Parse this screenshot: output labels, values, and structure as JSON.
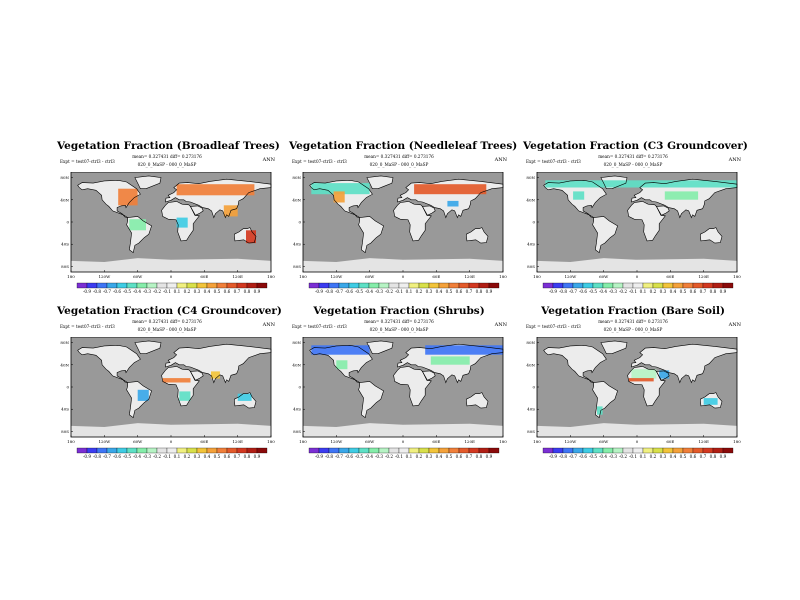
{
  "figure": {
    "season": "ANN",
    "expt_line": "Expt = test07-ctrl3 - ctrl3",
    "stats_line": "mean= 0.327431 diff= 0.273176",
    "run_line": "020_0_MaSP - 000_0_MaSP",
    "colors": {
      "ocean": "#999999",
      "land_neutral": "#ececec",
      "antarctic": "#e4e4e4",
      "frame": "#000000"
    }
  },
  "chart_data": [
    {
      "type": "heatmap",
      "title": "Vegetation Fraction (Broadleaf Trees)",
      "lat_ticks": [
        "80N",
        "40N",
        "0",
        "40S",
        "80S"
      ],
      "lon_ticks": [
        "180",
        "120W",
        "60W",
        "0",
        "60E",
        "120E",
        "180"
      ],
      "colorbar": {
        "labels": [
          "-0.9",
          "-0.8",
          "-0.7",
          "-0.6",
          "-0.5",
          "-0.4",
          "-0.3",
          "-0.2",
          "-0.1",
          "0.1",
          "0.2",
          "0.3",
          "0.4",
          "0.5",
          "0.6",
          "0.7",
          "0.8",
          "0.9"
        ],
        "colors": [
          "#7b2fd4",
          "#3c3cf0",
          "#3f75f5",
          "#3aa7e8",
          "#3fcce4",
          "#5ee0c5",
          "#85edaa",
          "#b6f3c4",
          "#e4e4e4",
          "#eeeeee",
          "#f0f080",
          "#d8e04a",
          "#f2c43a",
          "#f4a13a",
          "#f07f3a",
          "#e35a2a",
          "#d23820",
          "#b01e14",
          "#8a0a0a"
        ]
      },
      "regions": [
        {
          "name": "eastern-north-america",
          "lat": [
            30,
            60
          ],
          "lon": [
            -95,
            -60
          ],
          "value": 0.6
        },
        {
          "name": "boreal-eurasia",
          "lat": [
            48,
            68
          ],
          "lon": [
            10,
            150
          ],
          "value": 0.55
        },
        {
          "name": "amazon-basin",
          "lat": [
            -15,
            5
          ],
          "lon": [
            -75,
            -45
          ],
          "value": -0.3
        },
        {
          "name": "central-africa",
          "lat": [
            -10,
            8
          ],
          "lon": [
            10,
            30
          ],
          "value": -0.55
        },
        {
          "name": "australia-east",
          "lat": [
            -38,
            -15
          ],
          "lon": [
            135,
            153
          ],
          "value": 0.8
        },
        {
          "name": "southeast-asia",
          "lat": [
            10,
            30
          ],
          "lon": [
            95,
            120
          ],
          "value": 0.5
        }
      ]
    },
    {
      "type": "heatmap",
      "title": "Vegetation Fraction (Needleleaf Trees)",
      "lat_ticks": [
        "80N",
        "40N",
        "0",
        "40S",
        "80S"
      ],
      "lon_ticks": [
        "180",
        "120W",
        "60W",
        "0",
        "60E",
        "120E",
        "180"
      ],
      "colorbar": {
        "labels": [
          "-0.9",
          "-0.8",
          "-0.7",
          "-0.6",
          "-0.5",
          "-0.4",
          "-0.3",
          "-0.2",
          "-0.1",
          "0.1",
          "0.2",
          "0.3",
          "0.4",
          "0.5",
          "0.6",
          "0.7",
          "0.8",
          "0.9"
        ],
        "colors": [
          "#7b2fd4",
          "#3c3cf0",
          "#3f75f5",
          "#3aa7e8",
          "#3fcce4",
          "#5ee0c5",
          "#85edaa",
          "#b6f3c4",
          "#e4e4e4",
          "#eeeeee",
          "#f0f080",
          "#d8e04a",
          "#f2c43a",
          "#f4a13a",
          "#f07f3a",
          "#e35a2a",
          "#d23820",
          "#b01e14",
          "#8a0a0a"
        ]
      },
      "regions": [
        {
          "name": "boreal-north-america",
          "lat": [
            50,
            70
          ],
          "lon": [
            -165,
            -60
          ],
          "value": -0.4
        },
        {
          "name": "boreal-eurasia",
          "lat": [
            50,
            68
          ],
          "lon": [
            20,
            150
          ],
          "value": 0.65
        },
        {
          "name": "western-north-america",
          "lat": [
            35,
            55
          ],
          "lon": [
            -125,
            -105
          ],
          "value": 0.5
        },
        {
          "name": "tibet",
          "lat": [
            28,
            38
          ],
          "lon": [
            80,
            100
          ],
          "value": -0.6
        }
      ]
    },
    {
      "type": "heatmap",
      "title": "Vegetation Fraction (C3 Groundcover)",
      "lat_ticks": [
        "80N",
        "40N",
        "0",
        "40S",
        "80S"
      ],
      "lon_ticks": [
        "180",
        "120W",
        "60W",
        "0",
        "60E",
        "120E",
        "180"
      ],
      "colorbar": {
        "labels": [
          "-0.9",
          "-0.8",
          "-0.7",
          "-0.6",
          "-0.5",
          "-0.4",
          "-0.3",
          "-0.2",
          "-0.1",
          "0.1",
          "0.2",
          "0.3",
          "0.4",
          "0.5",
          "0.6",
          "0.7",
          "0.8",
          "0.9"
        ],
        "colors": [
          "#7b2fd4",
          "#3c3cf0",
          "#3f75f5",
          "#3aa7e8",
          "#3fcce4",
          "#5ee0c5",
          "#85edaa",
          "#b6f3c4",
          "#e4e4e4",
          "#eeeeee",
          "#f0f080",
          "#d8e04a",
          "#f2c43a",
          "#f4a13a",
          "#f07f3a",
          "#e35a2a",
          "#d23820",
          "#b01e14",
          "#8a0a0a"
        ]
      },
      "regions": [
        {
          "name": "arctic-tundra",
          "lat": [
            62,
            75
          ],
          "lon": [
            -165,
            180
          ],
          "value": -0.45
        },
        {
          "name": "central-asia",
          "lat": [
            40,
            55
          ],
          "lon": [
            50,
            110
          ],
          "value": -0.35
        },
        {
          "name": "north-america-plains",
          "lat": [
            40,
            55
          ],
          "lon": [
            -115,
            -95
          ],
          "value": -0.4
        }
      ]
    },
    {
      "type": "heatmap",
      "title": "Vegetation Fraction (C4 Groundcover)",
      "lat_ticks": [
        "80N",
        "40N",
        "0",
        "40S",
        "80S"
      ],
      "lon_ticks": [
        "180",
        "120W",
        "60W",
        "0",
        "60E",
        "120E",
        "180"
      ],
      "colorbar": {
        "labels": [
          "-0.9",
          "-0.8",
          "-0.7",
          "-0.6",
          "-0.5",
          "-0.4",
          "-0.3",
          "-0.2",
          "-0.1",
          "0.1",
          "0.2",
          "0.3",
          "0.4",
          "0.5",
          "0.6",
          "0.7",
          "0.8",
          "0.9"
        ],
        "colors": [
          "#7b2fd4",
          "#3c3cf0",
          "#3f75f5",
          "#3aa7e8",
          "#3fcce4",
          "#5ee0c5",
          "#85edaa",
          "#b6f3c4",
          "#e4e4e4",
          "#eeeeee",
          "#f0f080",
          "#d8e04a",
          "#f2c43a",
          "#f4a13a",
          "#f07f3a",
          "#e35a2a",
          "#d23820",
          "#b01e14",
          "#8a0a0a"
        ]
      },
      "regions": [
        {
          "name": "sahel",
          "lat": [
            8,
            16
          ],
          "lon": [
            -15,
            35
          ],
          "value": 0.6
        },
        {
          "name": "southern-africa",
          "lat": [
            -25,
            -8
          ],
          "lon": [
            15,
            35
          ],
          "value": -0.4
        },
        {
          "name": "brazil-cerrado",
          "lat": [
            -25,
            -5
          ],
          "lon": [
            -60,
            -40
          ],
          "value": -0.6
        },
        {
          "name": "northern-australia",
          "lat": [
            -25,
            -12
          ],
          "lon": [
            120,
            145
          ],
          "value": -0.5
        },
        {
          "name": "india",
          "lat": [
            15,
            28
          ],
          "lon": [
            72,
            88
          ],
          "value": 0.4
        }
      ]
    },
    {
      "type": "heatmap",
      "title": "Vegetation Fraction (Shrubs)",
      "lat_ticks": [
        "80N",
        "40N",
        "0",
        "40S",
        "80S"
      ],
      "lon_ticks": [
        "180",
        "120W",
        "60W",
        "0",
        "60E",
        "120E",
        "180"
      ],
      "colorbar": {
        "labels": [
          "-0.9",
          "-0.8",
          "-0.7",
          "-0.6",
          "-0.5",
          "-0.4",
          "-0.3",
          "-0.2",
          "-0.1",
          "0.1",
          "0.2",
          "0.3",
          "0.4",
          "0.5",
          "0.6",
          "0.7",
          "0.8",
          "0.9"
        ],
        "colors": [
          "#7b2fd4",
          "#3c3cf0",
          "#3f75f5",
          "#3aa7e8",
          "#3fcce4",
          "#5ee0c5",
          "#85edaa",
          "#b6f3c4",
          "#e4e4e4",
          "#eeeeee",
          "#f0f080",
          "#d8e04a",
          "#f2c43a",
          "#f4a13a",
          "#f07f3a",
          "#e35a2a",
          "#d23820",
          "#b01e14",
          "#8a0a0a"
        ]
      },
      "regions": [
        {
          "name": "arctic-north-america",
          "lat": [
            58,
            75
          ],
          "lon": [
            -165,
            -60
          ],
          "value": -0.75
        },
        {
          "name": "arctic-eurasia",
          "lat": [
            58,
            75
          ],
          "lon": [
            40,
            180
          ],
          "value": -0.7
        },
        {
          "name": "central-asia",
          "lat": [
            40,
            55
          ],
          "lon": [
            50,
            120
          ],
          "value": -0.35
        },
        {
          "name": "western-us",
          "lat": [
            32,
            48
          ],
          "lon": [
            -120,
            -100
          ],
          "value": -0.3
        }
      ]
    },
    {
      "type": "heatmap",
      "title": "Vegetation Fraction (Bare Soil)",
      "lat_ticks": [
        "80N",
        "40N",
        "0",
        "40S",
        "80S"
      ],
      "lon_ticks": [
        "180",
        "120W",
        "60W",
        "0",
        "60E",
        "120E",
        "180"
      ],
      "colorbar": {
        "labels": [
          "-0.9",
          "-0.8",
          "-0.7",
          "-0.6",
          "-0.5",
          "-0.4",
          "-0.3",
          "-0.2",
          "-0.1",
          "0.1",
          "0.2",
          "0.3",
          "0.4",
          "0.5",
          "0.6",
          "0.7",
          "0.8",
          "0.9"
        ],
        "colors": [
          "#7b2fd4",
          "#3c3cf0",
          "#3f75f5",
          "#3aa7e8",
          "#3fcce4",
          "#5ee0c5",
          "#85edaa",
          "#b6f3c4",
          "#e4e4e4",
          "#eeeeee",
          "#f0f080",
          "#d8e04a",
          "#f2c43a",
          "#f4a13a",
          "#f07f3a",
          "#e35a2a",
          "#d23820",
          "#b01e14",
          "#8a0a0a"
        ]
      },
      "regions": [
        {
          "name": "sahara",
          "lat": [
            15,
            32
          ],
          "lon": [
            -10,
            35
          ],
          "value": -0.2
        },
        {
          "name": "arabia",
          "lat": [
            15,
            30
          ],
          "lon": [
            40,
            58
          ],
          "value": -0.6
        },
        {
          "name": "sahel-edge",
          "lat": [
            10,
            16
          ],
          "lon": [
            -15,
            30
          ],
          "value": 0.7
        },
        {
          "name": "australia-interior",
          "lat": [
            -32,
            -20
          ],
          "lon": [
            120,
            145
          ],
          "value": -0.5
        },
        {
          "name": "patagonia",
          "lat": [
            -50,
            -35
          ],
          "lon": [
            -72,
            -62
          ],
          "value": -0.4
        }
      ]
    }
  ]
}
